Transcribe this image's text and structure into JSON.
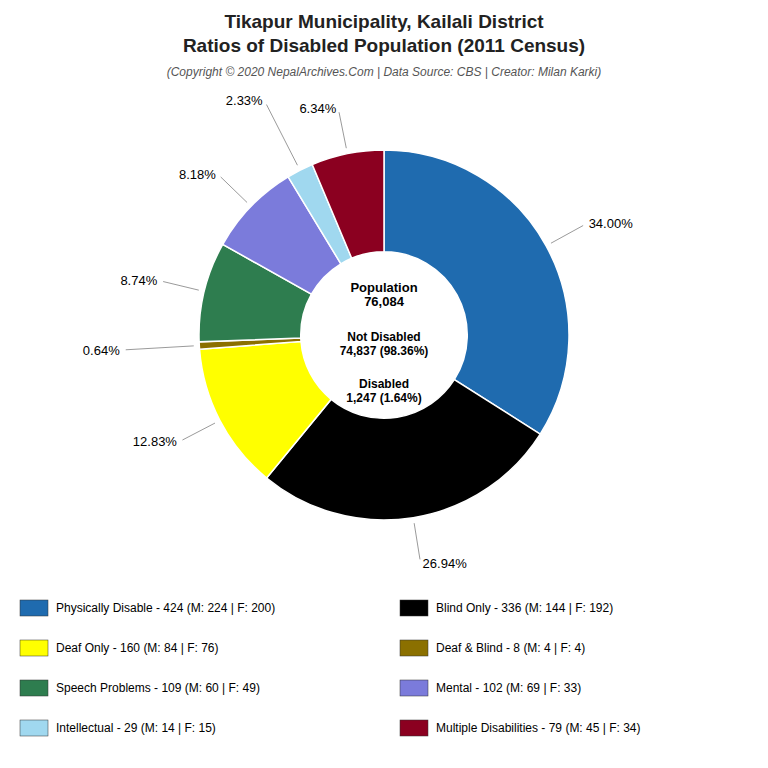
{
  "chart_data": {
    "type": "donut",
    "title": [
      "Tikapur Municipality, Kailali District",
      "Ratios of Disabled Population (2011 Census)"
    ],
    "subtitle": "(Copyright © 2020 NepalArchives.Com | Data Source: CBS | Creator: Milan Karki)",
    "categories": [
      "Physically Disable - 424 (M: 224 | F: 200)",
      "Blind Only - 336 (M: 144 | F: 192)",
      "Deaf Only - 160 (M: 84 | F: 76)",
      "Deaf & Blind - 8 (M: 4 | F: 4)",
      "Speech Problems - 109 (M: 60 | F: 49)",
      "Mental - 102 (M: 69 | F: 33)",
      "Intellectual - 29 (M: 14 | F: 15)",
      "Multiple Disabilities - 79 (M: 45 | F: 34)"
    ],
    "values": [
      34.0,
      26.94,
      12.83,
      0.64,
      8.74,
      8.18,
      2.33,
      6.34
    ],
    "value_labels": [
      "34.00%",
      "26.94%",
      "12.83%",
      "0.64%",
      "8.74%",
      "8.18%",
      "2.33%",
      "6.34%"
    ],
    "colors": [
      "#1f6baf",
      "#000000",
      "#ffff00",
      "#8b7000",
      "#2e7d4f",
      "#7b7bdb",
      "#a0d8ef",
      "#8b0020"
    ],
    "data_labels": true,
    "legend": "bottom",
    "annotations": [
      "Population",
      "76,084",
      "Not Disabled",
      "74,837 (98.36%)",
      "Disabled",
      "1,247 (1.64%)"
    ]
  }
}
